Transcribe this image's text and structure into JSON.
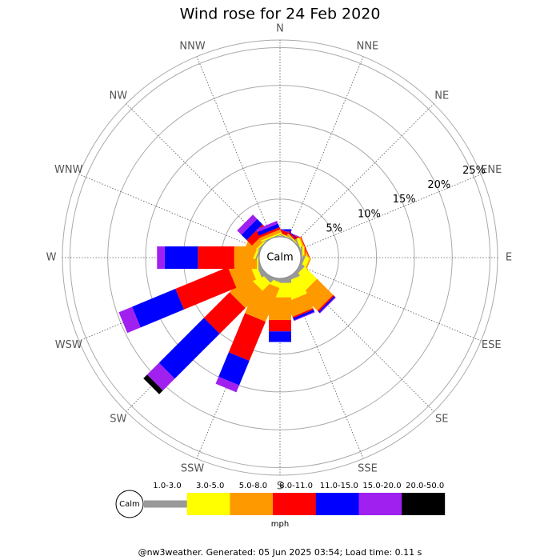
{
  "chart_data": {
    "type": "windrose",
    "title": "Wind rose for 24 Feb 2020",
    "directions": [
      "N",
      "NNE",
      "NE",
      "ENE",
      "E",
      "ESE",
      "SE",
      "SSE",
      "S",
      "SSW",
      "SW",
      "WSW",
      "W",
      "WNW",
      "NW",
      "NNW"
    ],
    "series": [
      {
        "name": "1.0-3.0",
        "color": "#999999",
        "values": [
          0.1,
          0.1,
          0.1,
          0.2,
          0.2,
          0.3,
          0.4,
          0.5,
          0.6,
          0.3,
          0.5,
          0.5,
          0.1,
          0.2,
          0.1,
          0.1
        ]
      },
      {
        "name": "3.0-5.0",
        "color": "#ffff00",
        "values": [
          0.1,
          0.1,
          0.1,
          0.4,
          0.3,
          0.6,
          2.3,
          2.5,
          1.9,
          0.7,
          1.5,
          0.8,
          0.2,
          0.3,
          0.2,
          0.2
        ]
      },
      {
        "name": "5.0-8.0",
        "color": "#ff9900",
        "values": [
          0.2,
          0.1,
          0.1,
          0.2,
          0,
          0.2,
          3.0,
          2.1,
          3.0,
          4.8,
          3.2,
          2.8,
          3.0,
          1.5,
          0.7,
          0.4
        ]
      },
      {
        "name": "8.0-11.0",
        "color": "#ff0000",
        "values": [
          0.3,
          0.4,
          0.2,
          0.1,
          0.1,
          0,
          0.2,
          0.2,
          1.5,
          5.6,
          4.8,
          7.5,
          4.8,
          0,
          1.0,
          0.3
        ]
      },
      {
        "name": "11.0-15.0",
        "color": "#0000ff",
        "values": [
          0.3,
          0,
          0.1,
          0,
          0,
          0,
          0.2,
          0.3,
          1.4,
          3.5,
          8.4,
          6.2,
          4.4,
          0,
          1.0,
          0.5
        ]
      },
      {
        "name": "15.0-20.0",
        "color": "#a020f0",
        "values": [
          0,
          0.1,
          0,
          0,
          0,
          0,
          0.1,
          0.1,
          0,
          1.0,
          2.2,
          1.9,
          1.0,
          0,
          0.8,
          0.4
        ]
      },
      {
        "name": "20.0-50.0",
        "color": "#000000",
        "values": [
          0,
          0,
          0,
          0,
          0,
          0,
          0,
          0,
          0,
          0,
          0.7,
          0,
          0,
          0,
          0,
          0
        ]
      }
    ],
    "ylim": [
      0,
      26
    ],
    "yticks": [
      {
        "value": 5,
        "label": "5%"
      },
      {
        "value": 10,
        "label": "10%"
      },
      {
        "value": 15,
        "label": "15%"
      },
      {
        "value": 20,
        "label": "20%"
      },
      {
        "value": 25,
        "label": "25%"
      }
    ],
    "calm_label": "Calm",
    "unit": "mph",
    "footer": "@nw3weather. Generated: 05 Jun 2025 03:54; Load time: 0.11 s"
  }
}
